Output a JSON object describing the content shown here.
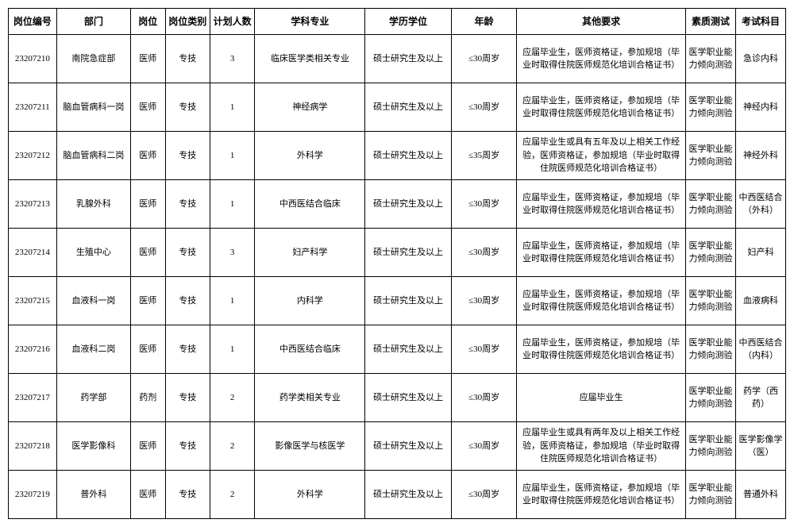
{
  "table": {
    "columns": [
      "岗位编号",
      "部门",
      "岗位",
      "岗位类别",
      "计划人数",
      "学科专业",
      "学历学位",
      "年龄",
      "其他要求",
      "素质测试",
      "考试科目"
    ],
    "rows": [
      {
        "id": "23207210",
        "dept": "南院急症部",
        "post": "医师",
        "type": "专技",
        "count": "3",
        "major": "临床医学类相关专业",
        "degree": "硕士研究生及以上",
        "age": "≤30周岁",
        "other": "应届毕业生，医师资格证，参加规培（毕业时取得住院医师规范化培训合格证书）",
        "test": "医学职业能力倾向测验",
        "exam": "急诊内科"
      },
      {
        "id": "23207211",
        "dept": "脑血管病科一岗",
        "post": "医师",
        "type": "专技",
        "count": "1",
        "major": "神经病学",
        "degree": "硕士研究生及以上",
        "age": "≤30周岁",
        "other": "应届毕业生，医师资格证，参加规培（毕业时取得住院医师规范化培训合格证书）",
        "test": "医学职业能力倾向测验",
        "exam": "神经内科"
      },
      {
        "id": "23207212",
        "dept": "脑血管病科二岗",
        "post": "医师",
        "type": "专技",
        "count": "1",
        "major": "外科学",
        "degree": "硕士研究生及以上",
        "age": "≤35周岁",
        "other": "应届毕业生或具有五年及以上相关工作经验，医师资格证，参加规培（毕业时取得住院医师规范化培训合格证书）",
        "test": "医学职业能力倾向测验",
        "exam": "神经外科"
      },
      {
        "id": "23207213",
        "dept": "乳腺外科",
        "post": "医师",
        "type": "专技",
        "count": "1",
        "major": "中西医结合临床",
        "degree": "硕士研究生及以上",
        "age": "≤30周岁",
        "other": "应届毕业生，医师资格证，参加规培（毕业时取得住院医师规范化培训合格证书）",
        "test": "医学职业能力倾向测验",
        "exam": "中西医结合（外科）"
      },
      {
        "id": "23207214",
        "dept": "生殖中心",
        "post": "医师",
        "type": "专技",
        "count": "3",
        "major": "妇产科学",
        "degree": "硕士研究生及以上",
        "age": "≤30周岁",
        "other": "应届毕业生，医师资格证，参加规培（毕业时取得住院医师规范化培训合格证书）",
        "test": "医学职业能力倾向测验",
        "exam": "妇产科"
      },
      {
        "id": "23207215",
        "dept": "血液科一岗",
        "post": "医师",
        "type": "专技",
        "count": "1",
        "major": "内科学",
        "degree": "硕士研究生及以上",
        "age": "≤30周岁",
        "other": "应届毕业生，医师资格证，参加规培（毕业时取得住院医师规范化培训合格证书）",
        "test": "医学职业能力倾向测验",
        "exam": "血液病科"
      },
      {
        "id": "23207216",
        "dept": "血液科二岗",
        "post": "医师",
        "type": "专技",
        "count": "1",
        "major": "中西医结合临床",
        "degree": "硕士研究生及以上",
        "age": "≤30周岁",
        "other": "应届毕业生，医师资格证，参加规培（毕业时取得住院医师规范化培训合格证书）",
        "test": "医学职业能力倾向测验",
        "exam": "中西医结合（内科）"
      },
      {
        "id": "23207217",
        "dept": "药学部",
        "post": "药剂",
        "type": "专技",
        "count": "2",
        "major": "药学类相关专业",
        "degree": "硕士研究生及以上",
        "age": "≤30周岁",
        "other": "应届毕业生",
        "test": "医学职业能力倾向测验",
        "exam": "药学（西药）"
      },
      {
        "id": "23207218",
        "dept": "医学影像科",
        "post": "医师",
        "type": "专技",
        "count": "2",
        "major": "影像医学与核医学",
        "degree": "硕士研究生及以上",
        "age": "≤30周岁",
        "other": "应届毕业生或具有两年及以上相关工作经验，医师资格证，参加规培（毕业时取得住院医师规范化培训合格证书）",
        "test": "医学职业能力倾向测验",
        "exam": "医学影像学（医）"
      },
      {
        "id": "23207219",
        "dept": "普外科",
        "post": "医师",
        "type": "专技",
        "count": "2",
        "major": "外科学",
        "degree": "硕士研究生及以上",
        "age": "≤30周岁",
        "other": "应届毕业生，医师资格证，参加规培（毕业时取得住院医师规范化培训合格证书）",
        "test": "医学职业能力倾向测验",
        "exam": "普通外科"
      }
    ],
    "colClasses": [
      "col-id",
      "col-dept",
      "col-post",
      "col-type",
      "col-count",
      "col-major",
      "col-degree",
      "col-age",
      "col-other",
      "col-test",
      "col-exam"
    ],
    "fields": [
      "id",
      "dept",
      "post",
      "type",
      "count",
      "major",
      "degree",
      "age",
      "other",
      "test",
      "exam"
    ]
  }
}
